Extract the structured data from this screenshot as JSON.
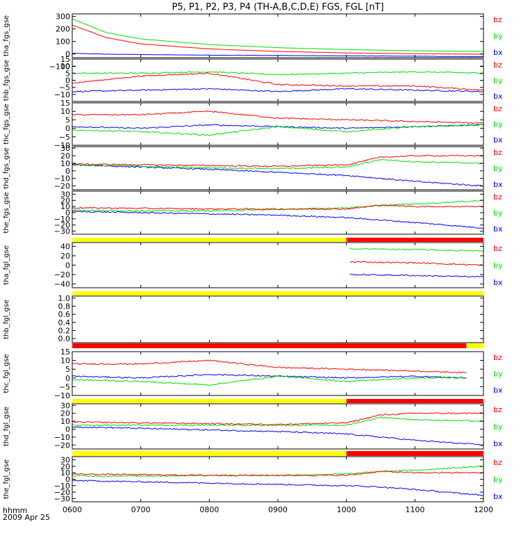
{
  "title": "P5, P1, P2, P3, P4 (TH-A,B,C,D,E) FGS, FGL [nT]",
  "time_axis": {
    "tick_labels": [
      "0600",
      "0700",
      "0800",
      "0900",
      "1000",
      "1100",
      "1200"
    ],
    "range": [
      "0600",
      "1200"
    ],
    "unit_label": "hhmm",
    "date_label": "2009 Apr 25"
  },
  "colors": {
    "bx": "#0000ff",
    "by": "#00dd00",
    "bz": "#ff0000",
    "yellow": "#ffff00",
    "red": "#ff0000",
    "black": "#000000"
  },
  "chart_data": [
    {
      "type": "line",
      "ylabel": "tha_fgs_gse",
      "ylim": [
        -30,
        320
      ],
      "yticks": [
        "300",
        "200",
        "100",
        "0",
        "−100"
      ],
      "yticks_values": [
        300,
        200,
        100,
        0,
        -100
      ],
      "legend": [
        "bz",
        "by",
        "bx"
      ],
      "series": [
        {
          "name": "bx",
          "x": [
            "0600",
            "0630",
            "0700",
            "0800",
            "0900",
            "1000",
            "1100",
            "1200"
          ],
          "values": [
            5,
            -2,
            -5,
            -10,
            -12,
            -15,
            -18,
            -22
          ]
        },
        {
          "name": "by",
          "x": [
            "0600",
            "0630",
            "0700",
            "0800",
            "0900",
            "1000",
            "1100",
            "1200"
          ],
          "values": [
            280,
            170,
            120,
            75,
            50,
            35,
            25,
            20
          ]
        },
        {
          "name": "bz",
          "x": [
            "0600",
            "0630",
            "0700",
            "0800",
            "0900",
            "1000",
            "1100",
            "1200"
          ],
          "values": [
            230,
            130,
            80,
            40,
            20,
            8,
            2,
            -2
          ]
        }
      ]
    },
    {
      "type": "line",
      "ylabel": "thb_fgs_gse",
      "ylim": [
        -15,
        15
      ],
      "yticks": [
        "15",
        "10",
        "5",
        "0",
        "−5",
        "−10"
      ],
      "yticks_values": [
        15,
        10,
        5,
        0,
        -5,
        -10
      ],
      "legend": [
        "bz",
        "by",
        "bx"
      ],
      "series": [
        {
          "name": "bx",
          "x": [
            "0600",
            "0700",
            "0800",
            "0900",
            "1000",
            "1100",
            "1200"
          ],
          "values": [
            -8,
            -7,
            -6,
            -8,
            -6,
            -7,
            -8
          ]
        },
        {
          "name": "by",
          "x": [
            "0600",
            "0700",
            "0800",
            "0900",
            "1000",
            "1100",
            "1200"
          ],
          "values": [
            5,
            5,
            6,
            4,
            5,
            6,
            5
          ]
        },
        {
          "name": "bz",
          "x": [
            "0600",
            "0700",
            "0800",
            "0900",
            "1000",
            "1100",
            "1200"
          ],
          "values": [
            -2,
            3,
            5,
            -3,
            -4,
            -4,
            -7
          ]
        }
      ]
    },
    {
      "type": "line",
      "ylabel": "thc_fgs_gse",
      "ylim": [
        -10,
        15
      ],
      "yticks": [
        "15",
        "10",
        "5",
        "0",
        "−5",
        "−10"
      ],
      "yticks_values": [
        15,
        10,
        5,
        0,
        -5,
        -10
      ],
      "legend": [
        "bz",
        "by",
        "bx"
      ],
      "series": [
        {
          "name": "bx",
          "x": [
            "0600",
            "0700",
            "0800",
            "0900",
            "1000",
            "1100",
            "1200"
          ],
          "values": [
            1,
            0,
            2,
            1,
            0,
            1,
            2
          ]
        },
        {
          "name": "by",
          "x": [
            "0600",
            "0700",
            "0800",
            "0900",
            "1000",
            "1100",
            "1200"
          ],
          "values": [
            -1,
            -2,
            -4,
            1,
            -2,
            1,
            2
          ]
        },
        {
          "name": "bz",
          "x": [
            "0600",
            "0700",
            "0800",
            "0900",
            "1000",
            "1100",
            "1200"
          ],
          "values": [
            8,
            8,
            10,
            6,
            5,
            4,
            3
          ]
        }
      ]
    },
    {
      "type": "line",
      "ylabel": "thd_fgs_gse",
      "ylim": [
        -25,
        32
      ],
      "yticks": [
        "30",
        "20",
        "10",
        "0",
        "−10",
        "−20"
      ],
      "yticks_values": [
        30,
        20,
        10,
        0,
        -10,
        -20
      ],
      "legend": [
        "bz",
        "by",
        "bx"
      ],
      "series": [
        {
          "name": "bx",
          "x": [
            "0600",
            "0700",
            "0800",
            "0900",
            "1000",
            "1030",
            "1100",
            "1200"
          ],
          "values": [
            8,
            5,
            2,
            -2,
            -6,
            -10,
            -14,
            -20
          ]
        },
        {
          "name": "by",
          "x": [
            "0600",
            "0700",
            "0800",
            "0900",
            "1000",
            "1030",
            "1100",
            "1200"
          ],
          "values": [
            8,
            6,
            4,
            3,
            5,
            15,
            12,
            10
          ]
        },
        {
          "name": "bz",
          "x": [
            "0600",
            "0700",
            "0800",
            "0900",
            "1000",
            "1030",
            "1100",
            "1200"
          ],
          "values": [
            9,
            8,
            7,
            6,
            8,
            18,
            20,
            20
          ]
        }
      ]
    },
    {
      "type": "line",
      "ylabel": "the_fgs_gse",
      "ylim": [
        -35,
        35
      ],
      "yticks": [
        "30",
        "20",
        "10",
        "0",
        "−10",
        "−20",
        "−30"
      ],
      "yticks_values": [
        30,
        20,
        10,
        0,
        -10,
        -20,
        -30
      ],
      "legend": [
        "bz",
        "by",
        "bx"
      ],
      "series": [
        {
          "name": "bx",
          "x": [
            "0600",
            "0700",
            "0800",
            "0900",
            "1000",
            "1030",
            "1100",
            "1200"
          ],
          "values": [
            2,
            0,
            -2,
            -4,
            -8,
            -12,
            -16,
            -25
          ]
        },
        {
          "name": "by",
          "x": [
            "0600",
            "0700",
            "0800",
            "0900",
            "1000",
            "1030",
            "1100",
            "1200"
          ],
          "values": [
            4,
            3,
            3,
            5,
            8,
            12,
            14,
            20
          ]
        },
        {
          "name": "bz",
          "x": [
            "0600",
            "0700",
            "0800",
            "0900",
            "1000",
            "1030",
            "1100",
            "1200"
          ],
          "values": [
            8,
            7,
            6,
            6,
            6,
            12,
            10,
            10
          ]
        }
      ]
    },
    {
      "type": "line",
      "ylabel": "tha_fgl_gse",
      "ylim": [
        -48,
        48
      ],
      "yticks": [
        "40",
        "20",
        "0",
        "−20",
        "−40"
      ],
      "yticks_values": [
        40,
        20,
        0,
        -20,
        -40
      ],
      "legend": [
        "bz",
        "by",
        "bx"
      ],
      "series": [
        {
          "name": "bx",
          "x": [
            "1003",
            "1100",
            "1200"
          ],
          "values": [
            -20,
            -22,
            -25
          ]
        },
        {
          "name": "by",
          "x": [
            "1003",
            "1100",
            "1200"
          ],
          "values": [
            35,
            33,
            30
          ]
        },
        {
          "name": "bz",
          "x": [
            "1003",
            "1100",
            "1200"
          ],
          "values": [
            7,
            5,
            0
          ]
        }
      ]
    },
    {
      "type": "line",
      "ylabel": "thb_fgl_gse",
      "ylim": [
        -0.1,
        1.05
      ],
      "yticks": [
        "1.0",
        "0.8",
        "0.6",
        "0.4",
        "0.2",
        "0.0"
      ],
      "yticks_values": [
        1.0,
        0.8,
        0.6,
        0.4,
        0.2,
        0.0
      ],
      "legend": [],
      "series": []
    },
    {
      "type": "line",
      "ylabel": "thc_fgl_gse",
      "ylim": [
        -10,
        15
      ],
      "yticks": [
        "15",
        "10",
        "5",
        "0",
        "−5",
        "−10"
      ],
      "yticks_values": [
        15,
        10,
        5,
        0,
        -5,
        -10
      ],
      "legend": [
        "bz",
        "by",
        "bx"
      ],
      "series": [
        {
          "name": "bx",
          "x": [
            "0600",
            "0700",
            "0800",
            "0900",
            "1000",
            "1100",
            "1145"
          ],
          "values": [
            1,
            0,
            2,
            1,
            0,
            1,
            0
          ]
        },
        {
          "name": "by",
          "x": [
            "0600",
            "0700",
            "0800",
            "0900",
            "1000",
            "1100",
            "1145"
          ],
          "values": [
            -1,
            -2,
            -4,
            1,
            -2,
            0,
            0
          ]
        },
        {
          "name": "bz",
          "x": [
            "0600",
            "0700",
            "0800",
            "0900",
            "1000",
            "1100",
            "1145"
          ],
          "values": [
            8,
            8,
            10,
            6,
            5,
            4,
            3
          ]
        }
      ]
    },
    {
      "type": "line",
      "ylabel": "thd_fgl_gse",
      "ylim": [
        -25,
        32
      ],
      "yticks": [
        "30",
        "20",
        "10",
        "0",
        "−10",
        "−20"
      ],
      "yticks_values": [
        30,
        20,
        10,
        0,
        -10,
        -20
      ],
      "legend": [
        "bz",
        "by",
        "bx"
      ],
      "series": [
        {
          "name": "bx",
          "x": [
            "0600",
            "0700",
            "0800",
            "0900",
            "1000",
            "1030",
            "1100",
            "1200"
          ],
          "values": [
            3,
            1,
            -1,
            -3,
            -6,
            -10,
            -14,
            -20
          ]
        },
        {
          "name": "by",
          "x": [
            "0600",
            "0700",
            "0800",
            "0900",
            "1000",
            "1030",
            "1100",
            "1200"
          ],
          "values": [
            5,
            5,
            5,
            5,
            5,
            15,
            12,
            10
          ]
        },
        {
          "name": "bz",
          "x": [
            "0600",
            "0700",
            "0800",
            "0900",
            "1000",
            "1030",
            "1100",
            "1200"
          ],
          "values": [
            9,
            8,
            7,
            6,
            8,
            18,
            20,
            20
          ]
        }
      ]
    },
    {
      "type": "line",
      "ylabel": "the_fgl_gse",
      "ylim": [
        -35,
        35
      ],
      "yticks": [
        "30",
        "20",
        "10",
        "0",
        "−10",
        "−20",
        "−30"
      ],
      "yticks_values": [
        30,
        20,
        10,
        0,
        -10,
        -20,
        -30
      ],
      "legend": [
        "bz",
        "by",
        "bx"
      ],
      "series": [
        {
          "name": "bx",
          "x": [
            "0600",
            "0700",
            "0800",
            "0900",
            "1000",
            "1030",
            "1100",
            "1200"
          ],
          "values": [
            -2,
            -4,
            -6,
            -8,
            -10,
            -12,
            -16,
            -25
          ]
        },
        {
          "name": "by",
          "x": [
            "0600",
            "0700",
            "0800",
            "0900",
            "1000",
            "1030",
            "1100",
            "1200"
          ],
          "values": [
            5,
            5,
            6,
            6,
            8,
            12,
            14,
            20
          ]
        },
        {
          "name": "bz",
          "x": [
            "0600",
            "0700",
            "0800",
            "0900",
            "1000",
            "1030",
            "1100",
            "1200"
          ],
          "values": [
            8,
            7,
            6,
            6,
            6,
            12,
            10,
            10
          ]
        }
      ]
    }
  ],
  "mode_bars": [
    {
      "segments": [
        {
          "start": "0600",
          "end": "1000",
          "color": "yellow"
        },
        {
          "start": "1000",
          "end": "1200",
          "color": "red"
        }
      ]
    },
    {
      "segments": [
        {
          "start": "0600",
          "end": "1200",
          "color": "yellow"
        }
      ]
    },
    {
      "segments": [
        {
          "start": "0600",
          "end": "1145",
          "color": "red"
        },
        {
          "start": "1145",
          "end": "1200",
          "color": "yellow"
        }
      ]
    },
    {
      "segments": [
        {
          "start": "0600",
          "end": "1000",
          "color": "yellow"
        },
        {
          "start": "1000",
          "end": "1200",
          "color": "red"
        }
      ]
    },
    {
      "segments": [
        {
          "start": "0600",
          "end": "1000",
          "color": "yellow"
        },
        {
          "start": "1000",
          "end": "1200",
          "color": "red"
        }
      ]
    }
  ]
}
